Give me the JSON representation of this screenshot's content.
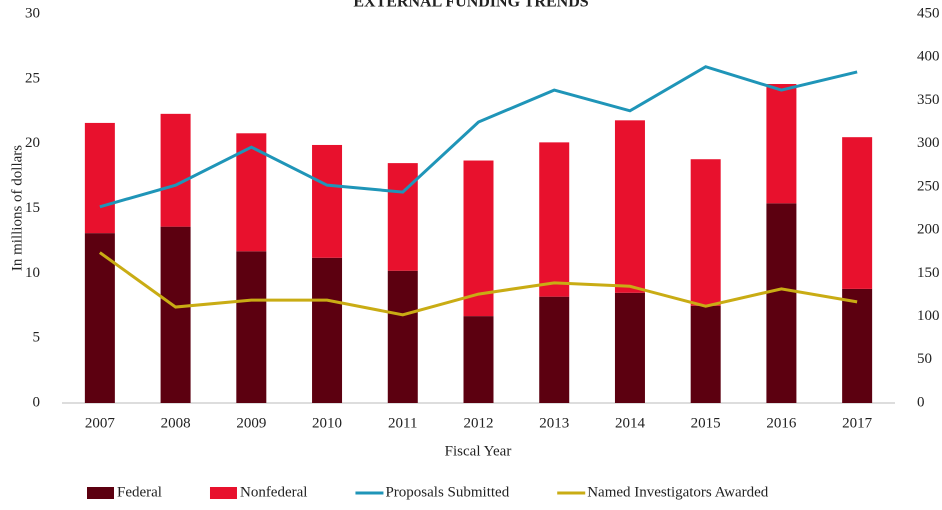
{
  "chart_data": {
    "type": "bar",
    "stacked": true,
    "title": "EXTERNAL FUNDING TRENDS",
    "x_label": "Fiscal Year",
    "y_label": "In millions of dollars",
    "categories": [
      "2007",
      "2008",
      "2009",
      "2010",
      "2011",
      "2012",
      "2013",
      "2014",
      "2015",
      "2016",
      "2017"
    ],
    "series": [
      {
        "name": "Federal",
        "type": "bar",
        "color": "#5c0010",
        "values": [
          13.1,
          13.6,
          11.7,
          11.2,
          10.2,
          6.7,
          8.2,
          8.5,
          7.5,
          15.4,
          8.8
        ]
      },
      {
        "name": "Nonfederal",
        "type": "bar",
        "color": "#e8112d",
        "values": [
          8.5,
          8.7,
          9.1,
          8.7,
          8.3,
          12.0,
          11.9,
          13.3,
          11.3,
          9.2,
          11.7
        ]
      },
      {
        "name": "Proposals Submitted",
        "type": "line",
        "axis": "y2",
        "color": "#1f95b8",
        "values": [
          227,
          252,
          296,
          252,
          244,
          325,
          362,
          338,
          389,
          362,
          383
        ]
      },
      {
        "name": "Named Investigators Awarded",
        "type": "line",
        "axis": "y2",
        "color": "#c9ac14",
        "values": [
          174,
          111,
          119,
          119,
          102,
          126,
          139,
          135,
          112,
          132,
          117
        ]
      }
    ],
    "ylim": [
      0,
      30
    ],
    "yticks": [
      0,
      5,
      10,
      15,
      20,
      25,
      30
    ],
    "y2lim": [
      0,
      450
    ],
    "y2ticks": [
      0,
      50,
      100,
      150,
      200,
      250,
      300,
      350,
      400,
      450
    ],
    "legend": "bottom"
  }
}
